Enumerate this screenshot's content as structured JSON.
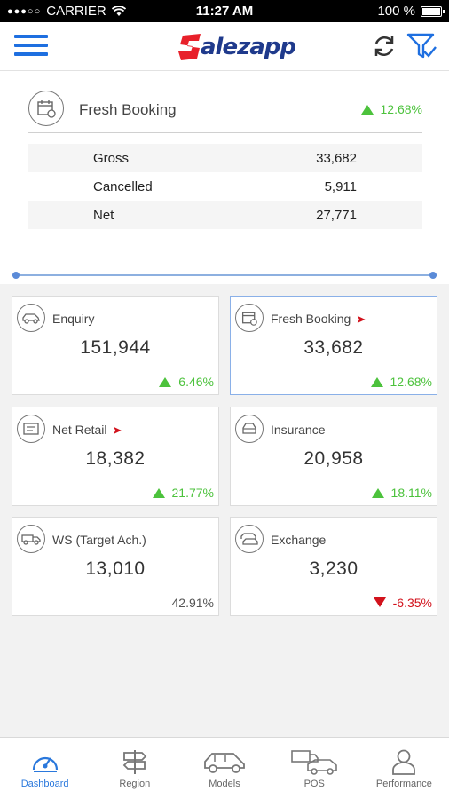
{
  "status_bar": {
    "carrier": "CARRIER",
    "time": "11:27 AM",
    "battery": "100 %"
  },
  "header": {
    "logo_text": "alezapp"
  },
  "summary": {
    "title": "Fresh Booking",
    "change": "12.68%",
    "rows": [
      {
        "label": "Gross",
        "value": "33,682"
      },
      {
        "label": "Cancelled",
        "value": "5,911"
      },
      {
        "label": "Net",
        "value": "27,771"
      }
    ]
  },
  "tiles": [
    {
      "name": "Enquiry",
      "value": "151,944",
      "change": "6.46%",
      "trend": "up",
      "icon": "car-icon"
    },
    {
      "name": "Fresh Booking",
      "value": "33,682",
      "change": "12.68%",
      "trend": "up",
      "icon": "calendar-icon",
      "selected": true
    },
    {
      "name": "Net Retail",
      "value": "18,382",
      "change": "21.77%",
      "trend": "up",
      "icon": "receipt-icon"
    },
    {
      "name": "Insurance",
      "value": "20,958",
      "change": "18.11%",
      "trend": "up",
      "icon": "insurance-car-icon"
    },
    {
      "name": "WS (Target Ach.)",
      "value": "13,010",
      "change": "42.91%",
      "trend": "none",
      "icon": "truck-icon"
    },
    {
      "name": "Exchange",
      "value": "3,230",
      "change": "-6.35%",
      "trend": "down",
      "icon": "exchange-icon"
    }
  ],
  "tabs": [
    {
      "label": "Dashboard",
      "icon": "speedometer-icon",
      "active": true
    },
    {
      "label": "Region",
      "icon": "signpost-icon"
    },
    {
      "label": "Models",
      "icon": "car-icon"
    },
    {
      "label": "POS",
      "icon": "trucks-icon"
    },
    {
      "label": "Performance",
      "icon": "person-icon"
    }
  ],
  "colors": {
    "accent": "#1e6fe0",
    "positive": "#4cc23c",
    "negative": "#d2121c",
    "logo_red": "#e8202a",
    "logo_blue": "#1f3a8c"
  }
}
